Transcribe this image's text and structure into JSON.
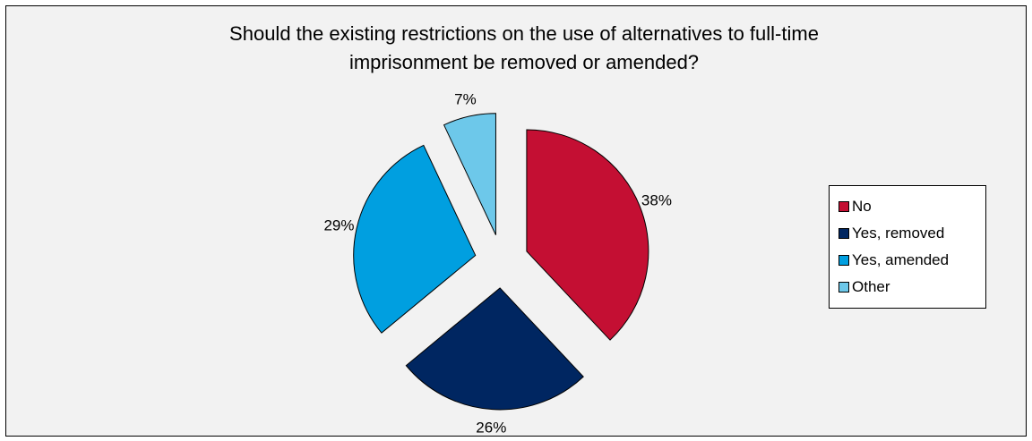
{
  "chart_data": {
    "type": "pie",
    "title": "Should the existing restrictions on the use of alternatives to full-time\nimprisonment be removed or amended?",
    "categories": [
      "No",
      "Yes, removed",
      "Yes, amended",
      "Other"
    ],
    "values": [
      38,
      26,
      29,
      7
    ],
    "labels": [
      "38%",
      "26%",
      "29%",
      "7%"
    ],
    "colors": [
      "#c40f33",
      "#002661",
      "#009fe0",
      "#6dc8ea"
    ],
    "exploded": true,
    "legend_position": "right"
  }
}
